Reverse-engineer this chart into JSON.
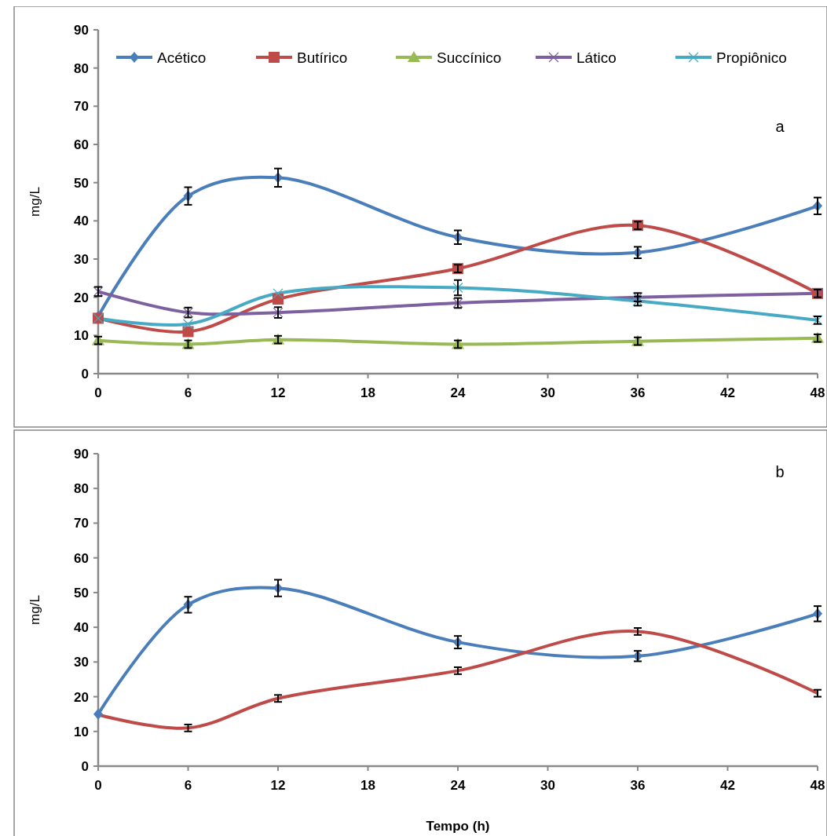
{
  "chart_data": [
    {
      "type": "line",
      "ylabel": "mg/L",
      "x": [
        0,
        6,
        12,
        24,
        36,
        48
      ],
      "xlim": [
        0,
        48
      ],
      "xticks": [
        0,
        6,
        12,
        18,
        24,
        30,
        36,
        42,
        48
      ],
      "ylim": [
        0,
        90
      ],
      "yticks": [
        0,
        10,
        20,
        30,
        40,
        50,
        60,
        70,
        80,
        90
      ],
      "grid": false,
      "legend": "top",
      "annotations": [
        "a"
      ],
      "series": [
        {
          "name": "Acético",
          "color": "#4a7ebb",
          "marker": "diamond",
          "values": [
            15,
            46.5,
            51.3,
            35.7,
            31.7,
            43.9
          ],
          "errors": [
            null,
            2.3,
            2.4,
            1.8,
            1.5,
            2.2
          ]
        },
        {
          "name": "Butírico",
          "color": "#be4b48",
          "marker": "square",
          "values": [
            14.5,
            11,
            19.5,
            27.5,
            38.8,
            21
          ],
          "errors": [
            null,
            null,
            null,
            1,
            1,
            1
          ]
        },
        {
          "name": "Succínico",
          "color": "#98b954",
          "marker": "triangle",
          "values": [
            8.7,
            7.7,
            8.9,
            7.7,
            8.5,
            9.3
          ],
          "errors": [
            1,
            1,
            1,
            1,
            1,
            1
          ]
        },
        {
          "name": "Lático",
          "color": "#7d60a0",
          "marker": "cross",
          "values": [
            21.5,
            16,
            16,
            18.5,
            20,
            21
          ],
          "errors": [
            1.2,
            1.3,
            1.4,
            1.3,
            1.1,
            null
          ]
        },
        {
          "name": "Propiônico",
          "color": "#46aac5",
          "marker": "cross",
          "values": [
            14.5,
            13,
            21,
            22.5,
            19,
            14
          ],
          "errors": [
            null,
            null,
            null,
            2,
            1.2,
            1
          ]
        }
      ]
    },
    {
      "type": "line",
      "xlabel": "Tempo (h)",
      "ylabel": "mg/L",
      "x": [
        0,
        6,
        12,
        24,
        36,
        48
      ],
      "xlim": [
        0,
        48
      ],
      "xticks": [
        0,
        6,
        12,
        18,
        24,
        30,
        36,
        42,
        48
      ],
      "ylim": [
        0,
        90
      ],
      "yticks": [
        0,
        10,
        20,
        30,
        40,
        50,
        60,
        70,
        80,
        90
      ],
      "grid": false,
      "legend": false,
      "annotations": [
        "b"
      ],
      "series": [
        {
          "color": "#4a7ebb",
          "marker": "diamond",
          "values": [
            15,
            46.5,
            51.3,
            35.7,
            31.7,
            43.9
          ],
          "errors": [
            null,
            2.3,
            2.4,
            1.8,
            1.5,
            2.2
          ]
        },
        {
          "color": "#be4b48",
          "marker": "none",
          "values": [
            14.8,
            11,
            19.5,
            27.5,
            38.8,
            21
          ],
          "errors": [
            null,
            1,
            1,
            1,
            1,
            1
          ]
        }
      ]
    }
  ]
}
